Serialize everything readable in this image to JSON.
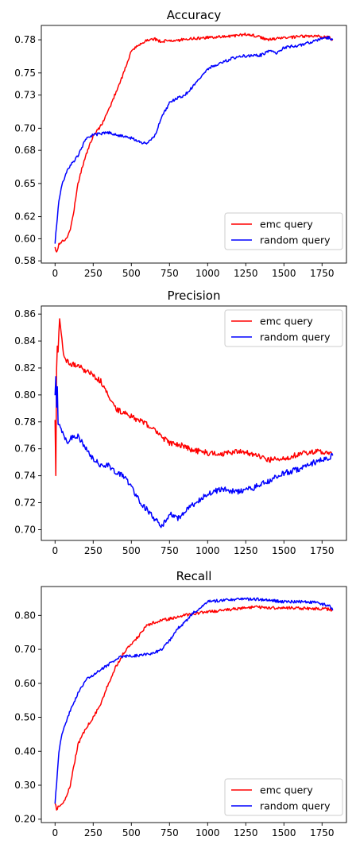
{
  "chart_data": [
    {
      "type": "line",
      "title": "Accuracy",
      "xlabel": "",
      "ylabel": "",
      "xlim": [
        -90,
        1910
      ],
      "ylim": [
        0.578,
        0.793
      ],
      "xticks": [
        0,
        250,
        500,
        750,
        1000,
        1250,
        1500,
        1750
      ],
      "xtick_labels": [
        "0",
        "250",
        "500",
        "750",
        "1000",
        "1250",
        "1500",
        "1750"
      ],
      "yticks": [
        0.58,
        0.6,
        0.62,
        0.65,
        0.68,
        0.7,
        0.73,
        0.75,
        0.78
      ],
      "ytick_labels": [
        "0.58",
        "0.60",
        "0.62",
        "0.65",
        "0.68",
        "0.70",
        "0.73",
        "0.75",
        "0.78"
      ],
      "legend": "lower right",
      "series": [
        {
          "name": "emc query",
          "color": "#ff0000",
          "x": [
            0,
            10,
            25,
            50,
            75,
            100,
            125,
            150,
            175,
            200,
            250,
            300,
            350,
            400,
            450,
            500,
            550,
            600,
            650,
            700,
            750,
            800,
            850,
            900,
            1000,
            1100,
            1200,
            1250,
            1300,
            1350,
            1400,
            1450,
            1500,
            1550,
            1600,
            1650,
            1700,
            1750,
            1800,
            1820
          ],
          "y": [
            0.592,
            0.588,
            0.595,
            0.598,
            0.6,
            0.608,
            0.627,
            0.65,
            0.663,
            0.675,
            0.693,
            0.702,
            0.716,
            0.733,
            0.75,
            0.77,
            0.775,
            0.78,
            0.781,
            0.778,
            0.78,
            0.779,
            0.781,
            0.781,
            0.782,
            0.783,
            0.784,
            0.785,
            0.784,
            0.782,
            0.78,
            0.781,
            0.782,
            0.782,
            0.783,
            0.783,
            0.783,
            0.783,
            0.782,
            0.78
          ]
        },
        {
          "name": "random query",
          "color": "#0000ff",
          "x": [
            0,
            10,
            25,
            50,
            75,
            100,
            150,
            200,
            250,
            300,
            350,
            400,
            450,
            500,
            550,
            600,
            650,
            700,
            750,
            800,
            850,
            900,
            950,
            1000,
            1100,
            1200,
            1300,
            1350,
            1400,
            1450,
            1500,
            1550,
            1600,
            1650,
            1700,
            1750,
            1800,
            1820
          ],
          "y": [
            0.596,
            0.612,
            0.635,
            0.651,
            0.66,
            0.666,
            0.675,
            0.69,
            0.694,
            0.695,
            0.696,
            0.694,
            0.693,
            0.691,
            0.688,
            0.686,
            0.692,
            0.71,
            0.723,
            0.727,
            0.73,
            0.737,
            0.745,
            0.754,
            0.76,
            0.765,
            0.766,
            0.766,
            0.77,
            0.768,
            0.773,
            0.774,
            0.775,
            0.777,
            0.779,
            0.781,
            0.782,
            0.78
          ]
        }
      ]
    },
    {
      "type": "line",
      "title": "Precision",
      "xlabel": "",
      "ylabel": "",
      "xlim": [
        -90,
        1910
      ],
      "ylim": [
        0.692,
        0.866
      ],
      "xticks": [
        0,
        250,
        500,
        750,
        1000,
        1250,
        1500,
        1750
      ],
      "xtick_labels": [
        "0",
        "250",
        "500",
        "750",
        "1000",
        "1250",
        "1500",
        "1750"
      ],
      "yticks": [
        0.7,
        0.72,
        0.74,
        0.76,
        0.78,
        0.8,
        0.82,
        0.84,
        0.86
      ],
      "ytick_labels": [
        "0.70",
        "0.72",
        "0.74",
        "0.76",
        "0.78",
        "0.80",
        "0.82",
        "0.84",
        "0.86"
      ],
      "legend": "upper right",
      "series": [
        {
          "name": "emc query",
          "color": "#ff0000",
          "x": [
            0,
            5,
            10,
            15,
            20,
            30,
            40,
            60,
            80,
            100,
            150,
            200,
            250,
            300,
            350,
            400,
            450,
            500,
            550,
            600,
            650,
            700,
            750,
            800,
            850,
            900,
            1000,
            1100,
            1200,
            1300,
            1400,
            1500,
            1600,
            1700,
            1800,
            1820
          ],
          "y": [
            0.78,
            0.74,
            0.82,
            0.838,
            0.832,
            0.858,
            0.845,
            0.828,
            0.825,
            0.823,
            0.822,
            0.818,
            0.815,
            0.81,
            0.8,
            0.789,
            0.787,
            0.784,
            0.781,
            0.778,
            0.775,
            0.769,
            0.764,
            0.763,
            0.762,
            0.759,
            0.757,
            0.756,
            0.758,
            0.756,
            0.752,
            0.753,
            0.756,
            0.758,
            0.757,
            0.755
          ]
        },
        {
          "name": "random query",
          "color": "#0000ff",
          "x": [
            0,
            5,
            10,
            15,
            20,
            30,
            40,
            60,
            80,
            100,
            150,
            200,
            250,
            300,
            350,
            400,
            450,
            500,
            550,
            600,
            650,
            700,
            750,
            800,
            900,
            1000,
            1100,
            1200,
            1300,
            1400,
            1500,
            1600,
            1700,
            1800,
            1820
          ],
          "y": [
            0.8,
            0.812,
            0.79,
            0.805,
            0.78,
            0.778,
            0.775,
            0.77,
            0.765,
            0.768,
            0.77,
            0.76,
            0.752,
            0.748,
            0.748,
            0.742,
            0.74,
            0.732,
            0.722,
            0.715,
            0.708,
            0.702,
            0.712,
            0.708,
            0.718,
            0.727,
            0.73,
            0.728,
            0.731,
            0.736,
            0.742,
            0.745,
            0.75,
            0.754,
            0.755
          ]
        }
      ]
    },
    {
      "type": "line",
      "title": "Recall",
      "xlabel": "",
      "ylabel": "",
      "xlim": [
        -90,
        1910
      ],
      "ylim": [
        0.19,
        0.885
      ],
      "xticks": [
        0,
        250,
        500,
        750,
        1000,
        1250,
        1500,
        1750
      ],
      "xtick_labels": [
        "0",
        "250",
        "500",
        "750",
        "1000",
        "1250",
        "1500",
        "1750"
      ],
      "yticks": [
        0.2,
        0.3,
        0.4,
        0.5,
        0.6,
        0.7,
        0.8
      ],
      "ytick_labels": [
        "0.20",
        "0.30",
        "0.40",
        "0.50",
        "0.60",
        "0.70",
        "0.80"
      ],
      "legend": "lower right",
      "series": [
        {
          "name": "emc query",
          "color": "#ff0000",
          "x": [
            0,
            10,
            25,
            50,
            75,
            100,
            125,
            150,
            200,
            250,
            300,
            350,
            400,
            450,
            500,
            550,
            600,
            650,
            700,
            750,
            800,
            850,
            900,
            1000,
            1100,
            1200,
            1300,
            1400,
            1500,
            1600,
            1700,
            1800,
            1820
          ],
          "y": [
            0.25,
            0.225,
            0.24,
            0.248,
            0.265,
            0.3,
            0.36,
            0.42,
            0.465,
            0.5,
            0.54,
            0.6,
            0.65,
            0.69,
            0.715,
            0.74,
            0.77,
            0.78,
            0.785,
            0.79,
            0.795,
            0.8,
            0.805,
            0.81,
            0.815,
            0.82,
            0.825,
            0.822,
            0.823,
            0.821,
            0.82,
            0.818,
            0.815
          ]
        },
        {
          "name": "random query",
          "color": "#0000ff",
          "x": [
            0,
            10,
            25,
            50,
            75,
            100,
            150,
            200,
            250,
            300,
            350,
            400,
            450,
            500,
            550,
            600,
            650,
            700,
            750,
            800,
            850,
            900,
            950,
            1000,
            1100,
            1200,
            1300,
            1400,
            1500,
            1600,
            1700,
            1800,
            1820
          ],
          "y": [
            0.25,
            0.3,
            0.4,
            0.46,
            0.49,
            0.52,
            0.57,
            0.61,
            0.625,
            0.64,
            0.655,
            0.672,
            0.68,
            0.68,
            0.682,
            0.685,
            0.69,
            0.7,
            0.725,
            0.76,
            0.78,
            0.805,
            0.82,
            0.84,
            0.845,
            0.847,
            0.848,
            0.845,
            0.84,
            0.84,
            0.838,
            0.828,
            0.815
          ]
        }
      ]
    }
  ]
}
